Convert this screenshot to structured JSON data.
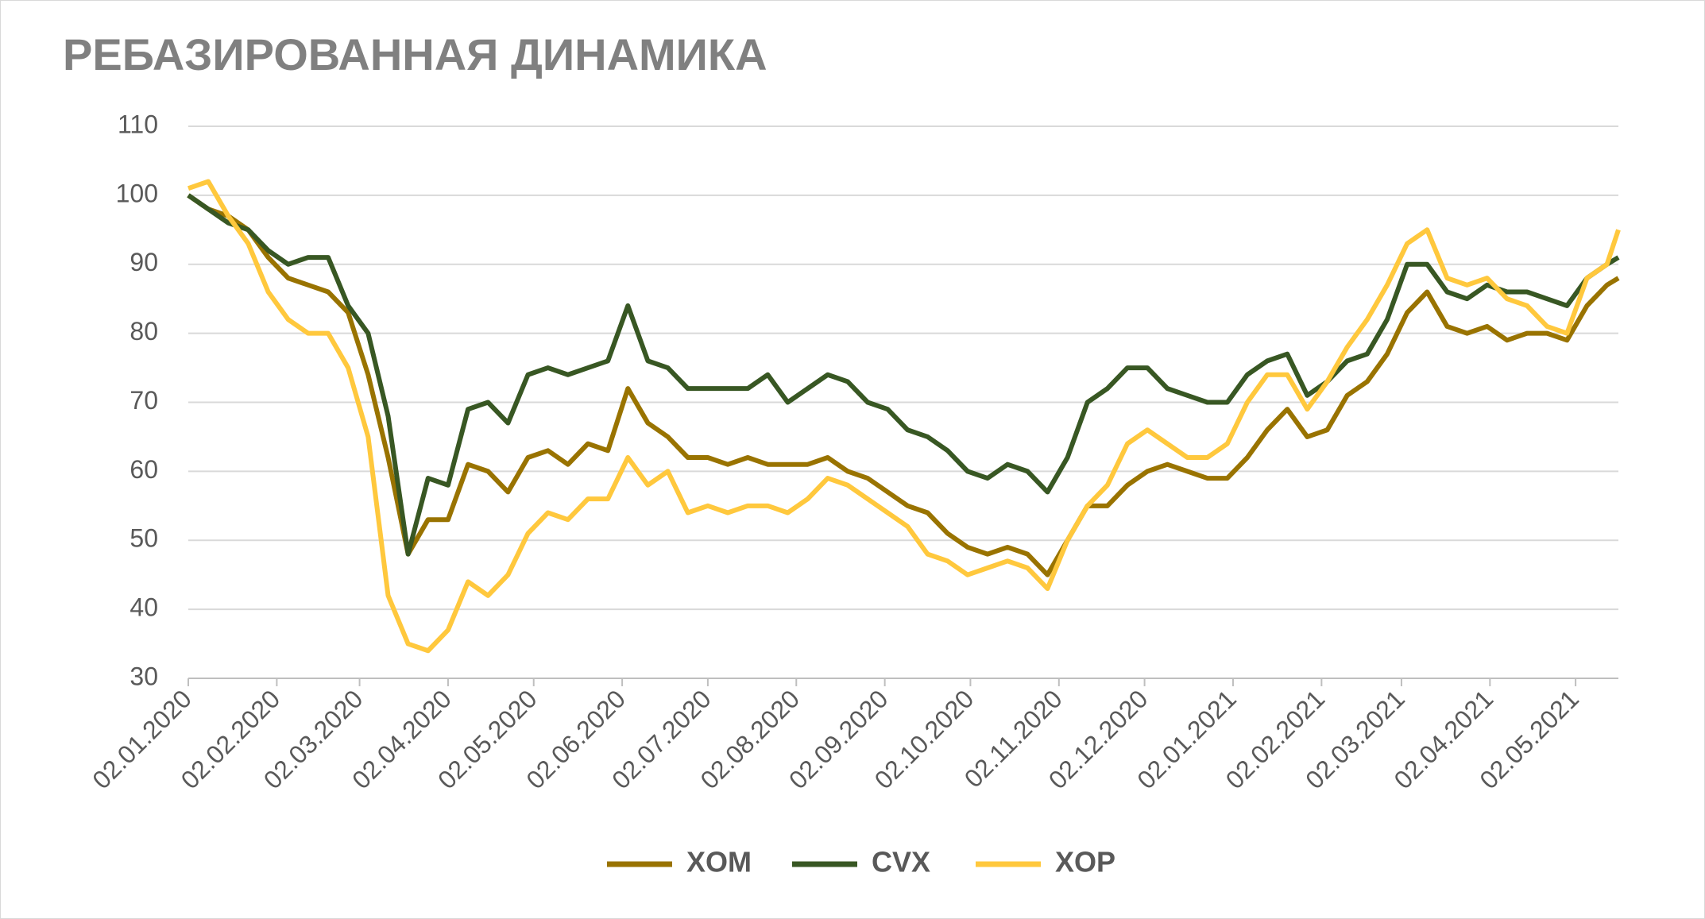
{
  "chart_data": {
    "type": "line",
    "title": "РЕБАЗИРОВАННАЯ ДИНАМИКА",
    "x": [
      "02.01.2020",
      "09.01.2020",
      "16.01.2020",
      "23.01.2020",
      "30.01.2020",
      "06.02.2020",
      "13.02.2020",
      "20.02.2020",
      "27.02.2020",
      "05.03.2020",
      "12.03.2020",
      "19.03.2020",
      "26.03.2020",
      "02.04.2020",
      "09.04.2020",
      "16.04.2020",
      "23.04.2020",
      "30.04.2020",
      "07.05.2020",
      "14.05.2020",
      "21.05.2020",
      "28.05.2020",
      "04.06.2020",
      "11.06.2020",
      "18.06.2020",
      "25.06.2020",
      "02.07.2020",
      "09.07.2020",
      "16.07.2020",
      "23.07.2020",
      "30.07.2020",
      "06.08.2020",
      "13.08.2020",
      "20.08.2020",
      "27.08.2020",
      "03.09.2020",
      "10.09.2020",
      "17.09.2020",
      "24.09.2020",
      "01.10.2020",
      "08.10.2020",
      "15.10.2020",
      "22.10.2020",
      "29.10.2020",
      "05.11.2020",
      "12.11.2020",
      "19.11.2020",
      "26.11.2020",
      "03.12.2020",
      "10.12.2020",
      "17.12.2020",
      "24.12.2020",
      "31.12.2020",
      "07.01.2021",
      "14.01.2021",
      "21.01.2021",
      "28.01.2021",
      "04.02.2021",
      "11.02.2021",
      "18.02.2021",
      "25.02.2021",
      "04.03.2021",
      "11.03.2021",
      "18.03.2021",
      "25.03.2021",
      "01.04.2021",
      "08.04.2021",
      "15.04.2021",
      "22.04.2021",
      "29.04.2021",
      "06.05.2021",
      "13.05.2021",
      "17.05.2021"
    ],
    "series": [
      {
        "name": "XOM",
        "color": "#997300",
        "values": [
          100,
          98,
          97,
          95,
          91,
          88,
          87,
          86,
          83,
          74,
          62,
          48,
          53,
          53,
          61,
          60,
          57,
          62,
          63,
          61,
          64,
          63,
          72,
          67,
          65,
          62,
          62,
          61,
          62,
          61,
          61,
          61,
          62,
          60,
          59,
          57,
          55,
          54,
          51,
          49,
          48,
          49,
          48,
          45,
          50,
          55,
          55,
          58,
          60,
          61,
          60,
          59,
          59,
          62,
          66,
          69,
          65,
          66,
          71,
          73,
          77,
          83,
          86,
          81,
          80,
          81,
          79,
          80,
          80,
          79,
          84,
          87,
          88
        ]
      },
      {
        "name": "CVX",
        "color": "#385723",
        "values": [
          100,
          98,
          96,
          95,
          92,
          90,
          91,
          91,
          84,
          80,
          68,
          48,
          59,
          58,
          69,
          70,
          67,
          74,
          75,
          74,
          75,
          76,
          84,
          76,
          75,
          72,
          72,
          72,
          72,
          74,
          70,
          72,
          74,
          73,
          70,
          69,
          66,
          65,
          63,
          60,
          59,
          61,
          60,
          57,
          62,
          70,
          72,
          75,
          75,
          72,
          71,
          70,
          70,
          74,
          76,
          77,
          71,
          73,
          76,
          77,
          82,
          90,
          90,
          86,
          85,
          87,
          86,
          86,
          85,
          84,
          88,
          90,
          91
        ]
      },
      {
        "name": "XOP",
        "color": "#ffc83d",
        "values": [
          101,
          102,
          97,
          93,
          86,
          82,
          80,
          80,
          75,
          65,
          42,
          35,
          34,
          37,
          44,
          42,
          45,
          51,
          54,
          53,
          56,
          56,
          62,
          58,
          60,
          54,
          55,
          54,
          55,
          55,
          54,
          56,
          59,
          58,
          56,
          54,
          52,
          48,
          47,
          45,
          46,
          47,
          46,
          43,
          50,
          55,
          58,
          64,
          66,
          64,
          62,
          62,
          64,
          70,
          74,
          74,
          69,
          73,
          78,
          82,
          87,
          93,
          95,
          88,
          87,
          88,
          85,
          84,
          81,
          80,
          88,
          90,
          95
        ]
      }
    ],
    "xlim": [
      "02.01.2020",
      "17.05.2021"
    ],
    "xticks": [
      "02.01.2020",
      "02.02.2020",
      "02.03.2020",
      "02.04.2020",
      "02.05.2020",
      "02.06.2020",
      "02.07.2020",
      "02.08.2020",
      "02.09.2020",
      "02.10.2020",
      "02.11.2020",
      "02.12.2020",
      "02.01.2021",
      "02.02.2021",
      "02.03.2021",
      "02.04.2021",
      "02.05.2021"
    ],
    "ylim": [
      30,
      110
    ],
    "yticks": [
      30,
      40,
      50,
      60,
      70,
      80,
      90,
      100,
      110
    ],
    "grid": true,
    "legend": "bottom"
  }
}
